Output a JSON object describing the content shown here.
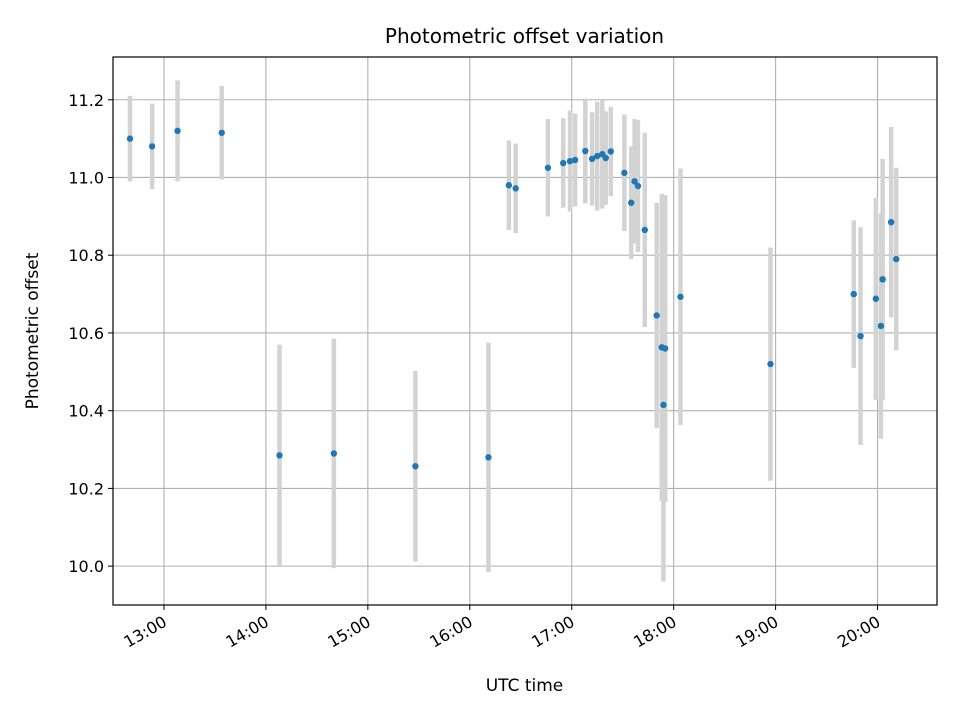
{
  "chart_data": {
    "type": "scatter",
    "title": "Photometric offset variation",
    "xlabel": "UTC time",
    "ylabel": "Photometric offset",
    "xlim": [
      "12:30",
      "20:35"
    ],
    "ylim": [
      9.9,
      11.31
    ],
    "xticks": [
      "13:00",
      "14:00",
      "15:00",
      "16:00",
      "17:00",
      "18:00",
      "19:00",
      "20:00"
    ],
    "yticks": [
      "10.0",
      "10.2",
      "10.4",
      "10.6",
      "10.8",
      "11.0",
      "11.2"
    ],
    "grid": true,
    "colors": {
      "point": "#1f77b4",
      "errorbar": "#d3d3d3",
      "grid": "#b0b0b0"
    },
    "points": [
      {
        "x": "12:40",
        "y": 11.1,
        "err": 0.11
      },
      {
        "x": "12:53",
        "y": 11.08,
        "err": 0.11
      },
      {
        "x": "13:08",
        "y": 11.12,
        "err": 0.13
      },
      {
        "x": "13:34",
        "y": 11.115,
        "err": 0.12
      },
      {
        "x": "14:08",
        "y": 10.285,
        "err": 0.285
      },
      {
        "x": "14:40",
        "y": 10.29,
        "err": 0.295
      },
      {
        "x": "15:28",
        "y": 10.257,
        "err": 0.245
      },
      {
        "x": "16:11",
        "y": 10.28,
        "err": 0.295
      },
      {
        "x": "16:23",
        "y": 10.98,
        "err": 0.115
      },
      {
        "x": "16:27",
        "y": 10.972,
        "err": 0.115
      },
      {
        "x": "16:46",
        "y": 11.025,
        "err": 0.125
      },
      {
        "x": "16:55",
        "y": 11.037,
        "err": 0.115
      },
      {
        "x": "16:59",
        "y": 11.042,
        "err": 0.13
      },
      {
        "x": "17:02",
        "y": 11.045,
        "err": 0.12
      },
      {
        "x": "17:08",
        "y": 11.068,
        "err": 0.135
      },
      {
        "x": "17:12",
        "y": 11.048,
        "err": 0.12
      },
      {
        "x": "17:15",
        "y": 11.055,
        "err": 0.14
      },
      {
        "x": "17:18",
        "y": 11.06,
        "err": 0.14
      },
      {
        "x": "17:20",
        "y": 11.05,
        "err": 0.12
      },
      {
        "x": "17:23",
        "y": 11.067,
        "err": 0.115
      },
      {
        "x": "17:31",
        "y": 11.012,
        "err": 0.15
      },
      {
        "x": "17:35",
        "y": 10.935,
        "err": 0.145
      },
      {
        "x": "17:37",
        "y": 10.99,
        "err": 0.16
      },
      {
        "x": "17:39",
        "y": 10.978,
        "err": 0.17
      },
      {
        "x": "17:43",
        "y": 10.865,
        "err": 0.25
      },
      {
        "x": "17:50",
        "y": 10.645,
        "err": 0.29
      },
      {
        "x": "17:53",
        "y": 10.563,
        "err": 0.395
      },
      {
        "x": "17:54",
        "y": 10.415,
        "err": 0.455
      },
      {
        "x": "17:55",
        "y": 10.56,
        "err": 0.395
      },
      {
        "x": "18:04",
        "y": 10.693,
        "err": 0.33
      },
      {
        "x": "18:57",
        "y": 10.52,
        "err": 0.3
      },
      {
        "x": "19:46",
        "y": 10.7,
        "err": 0.19
      },
      {
        "x": "19:50",
        "y": 10.592,
        "err": 0.28
      },
      {
        "x": "19:59",
        "y": 10.688,
        "err": 0.26
      },
      {
        "x": "20:02",
        "y": 10.618,
        "err": 0.29
      },
      {
        "x": "20:03",
        "y": 10.738,
        "err": 0.31
      },
      {
        "x": "20:08",
        "y": 10.885,
        "err": 0.245
      },
      {
        "x": "20:11",
        "y": 10.79,
        "err": 0.235
      }
    ]
  }
}
